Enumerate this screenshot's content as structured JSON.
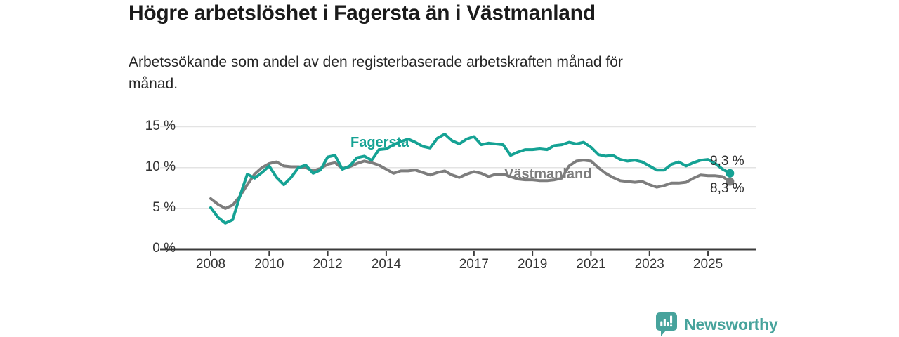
{
  "title": "Högre arbetslöshet i Fagersta än i Västmanland",
  "subtitle": {
    "line1": "Arbetssökande som andel av den registerbaserade arbetskraften månad för",
    "line2": "månad."
  },
  "branding": {
    "logo_text": "Newsworthy",
    "logo_icon": "bar-chart-speech-bubble-icon",
    "logo_color": "#47a39c"
  },
  "chart_data": {
    "type": "line",
    "title": "Högre arbetslöshet i Fagersta än i Västmanland",
    "unit": "%",
    "grid": "horizontal-lines",
    "legend": "inline-labels-on-lines",
    "ylim": [
      0,
      16
    ],
    "xlim_axis": [
      2006.3,
      2026.6
    ],
    "y_ticks": [
      {
        "value": 0,
        "label": "0 %"
      },
      {
        "value": 5,
        "label": "5 %"
      },
      {
        "value": 10,
        "label": "10 %"
      },
      {
        "value": 15,
        "label": "15 %"
      }
    ],
    "x_ticks": [
      {
        "value": 2008,
        "label": "2008"
      },
      {
        "value": 2010,
        "label": "2010"
      },
      {
        "value": 2012,
        "label": "2012"
      },
      {
        "value": 2014,
        "label": "2014"
      },
      {
        "value": 2017,
        "label": "2017"
      },
      {
        "value": 2019,
        "label": "2019"
      },
      {
        "value": 2021,
        "label": "2021"
      },
      {
        "value": 2023,
        "label": "2023"
      },
      {
        "value": 2025,
        "label": "2025"
      }
    ],
    "series": [
      {
        "name": "Fagersta",
        "key": "fagersta",
        "inline_label": "Fagersta",
        "end_label": "9,3 %",
        "end_value": 9.3,
        "color": "#15a294",
        "x": [
          2008.0,
          2008.25,
          2008.5,
          2008.75,
          2009.0,
          2009.25,
          2009.5,
          2009.75,
          2010.0,
          2010.25,
          2010.5,
          2010.75,
          2011.0,
          2011.25,
          2011.5,
          2011.75,
          2012.0,
          2012.25,
          2012.5,
          2012.75,
          2013.0,
          2013.25,
          2013.5,
          2013.75,
          2014.0,
          2014.25,
          2014.5,
          2014.75,
          2015.0,
          2015.25,
          2015.5,
          2015.75,
          2016.0,
          2016.25,
          2016.5,
          2016.75,
          2017.0,
          2017.25,
          2017.5,
          2017.75,
          2018.0,
          2018.25,
          2018.5,
          2018.75,
          2019.0,
          2019.25,
          2019.5,
          2019.75,
          2020.0,
          2020.25,
          2020.5,
          2020.75,
          2021.0,
          2021.25,
          2021.5,
          2021.75,
          2022.0,
          2022.25,
          2022.5,
          2022.75,
          2023.0,
          2023.25,
          2023.5,
          2023.75,
          2024.0,
          2024.25,
          2024.5,
          2024.75,
          2025.0,
          2025.25,
          2025.5,
          2025.75
        ],
        "values": [
          5.1,
          3.9,
          3.2,
          3.6,
          6.5,
          9.2,
          8.7,
          9.4,
          10.2,
          8.8,
          7.9,
          8.8,
          10.0,
          10.3,
          9.3,
          9.7,
          11.3,
          11.5,
          9.8,
          10.2,
          11.2,
          11.4,
          10.9,
          12.2,
          12.3,
          12.8,
          13.2,
          13.5,
          13.1,
          12.6,
          12.4,
          13.6,
          14.1,
          13.3,
          12.9,
          13.5,
          13.8,
          12.8,
          13.0,
          12.9,
          12.8,
          11.5,
          11.9,
          12.2,
          12.2,
          12.3,
          12.2,
          12.7,
          12.8,
          13.1,
          12.9,
          13.1,
          12.5,
          11.6,
          11.4,
          11.5,
          11.0,
          10.8,
          10.9,
          10.7,
          10.2,
          9.7,
          9.7,
          10.4,
          10.7,
          10.2,
          10.6,
          10.9,
          11.0,
          10.5,
          9.8,
          9.3
        ]
      },
      {
        "name": "Västmanland",
        "key": "vastmanland",
        "inline_label": "Västmanland",
        "end_label": "8,3 %",
        "end_value": 8.3,
        "color": "#7d7d7d",
        "x": [
          2008.0,
          2008.25,
          2008.5,
          2008.75,
          2009.0,
          2009.25,
          2009.5,
          2009.75,
          2010.0,
          2010.25,
          2010.5,
          2010.75,
          2011.0,
          2011.25,
          2011.5,
          2011.75,
          2012.0,
          2012.25,
          2012.5,
          2012.75,
          2013.0,
          2013.25,
          2013.5,
          2013.75,
          2014.0,
          2014.25,
          2014.5,
          2014.75,
          2015.0,
          2015.25,
          2015.5,
          2015.75,
          2016.0,
          2016.25,
          2016.5,
          2016.75,
          2017.0,
          2017.25,
          2017.5,
          2017.75,
          2018.0,
          2018.25,
          2018.5,
          2018.75,
          2019.0,
          2019.25,
          2019.5,
          2019.75,
          2020.0,
          2020.25,
          2020.5,
          2020.75,
          2021.0,
          2021.25,
          2021.5,
          2021.75,
          2022.0,
          2022.25,
          2022.5,
          2022.75,
          2023.0,
          2023.25,
          2023.5,
          2023.75,
          2024.0,
          2024.25,
          2024.5,
          2024.75,
          2025.0,
          2025.25,
          2025.5,
          2025.75
        ],
        "values": [
          6.2,
          5.5,
          5.0,
          5.4,
          6.5,
          7.9,
          9.2,
          10.0,
          10.5,
          10.7,
          10.2,
          10.1,
          10.1,
          10.0,
          9.6,
          9.9,
          10.4,
          10.6,
          9.9,
          10.1,
          10.5,
          10.8,
          10.6,
          10.3,
          9.8,
          9.3,
          9.6,
          9.6,
          9.7,
          9.4,
          9.1,
          9.4,
          9.6,
          9.1,
          8.8,
          9.2,
          9.5,
          9.3,
          8.9,
          9.2,
          9.2,
          8.9,
          8.6,
          8.5,
          8.5,
          8.4,
          8.4,
          8.5,
          8.7,
          10.2,
          10.8,
          10.9,
          10.8,
          10.0,
          9.3,
          8.8,
          8.4,
          8.3,
          8.2,
          8.3,
          7.9,
          7.6,
          7.8,
          8.1,
          8.1,
          8.2,
          8.7,
          9.1,
          9.0,
          9.0,
          8.9,
          8.3
        ]
      }
    ]
  }
}
